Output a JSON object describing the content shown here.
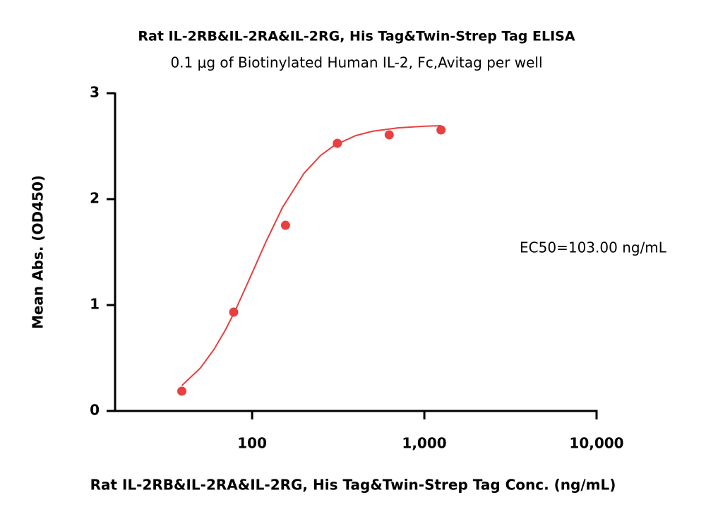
{
  "chart_data": {
    "type": "scatter",
    "title": "Rat IL-2RB&IL-2RA&IL-2RG, His Tag&Twin-Strep Tag ELISA",
    "subtitle": "0.1 μg of Biotinylated Human IL-2, Fc,Avitag per well",
    "x_label": "Rat IL-2RB&IL-2RA&IL-2RG, His Tag&Twin-Strep Tag Conc. (ng/mL)",
    "y_label": "Mean Abs. (OD450)",
    "annotation": "EC50=103.00 ng/mL",
    "x": [
      39.06,
      78.13,
      156.25,
      312.5,
      625,
      1250
    ],
    "values": [
      0.187,
      0.933,
      1.753,
      2.527,
      2.607,
      2.653
    ],
    "color": "#e8403f",
    "curve": {
      "x": [
        39.06,
        50,
        60,
        70,
        80,
        100,
        120,
        150,
        200,
        250,
        300,
        400,
        500,
        700,
        1000,
        1250
      ],
      "values": [
        0.24,
        0.405,
        0.58,
        0.766,
        0.953,
        1.302,
        1.595,
        1.921,
        2.244,
        2.413,
        2.507,
        2.6,
        2.641,
        2.673,
        2.689,
        2.693
      ]
    },
    "x_log": true,
    "xlim": [
      16,
      10000
    ],
    "xticks": [
      100,
      {
        "value": 1000,
        "label": "1,000"
      },
      {
        "value": 10000,
        "label": "10,000"
      }
    ],
    "ylim": [
      0,
      3
    ],
    "yticks": [
      0,
      1,
      2,
      3
    ],
    "grid": false
  }
}
